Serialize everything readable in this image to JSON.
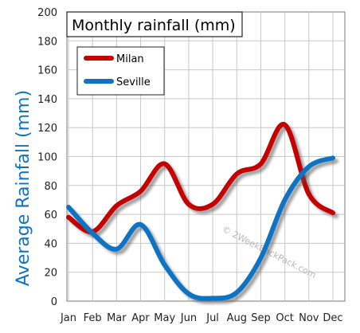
{
  "chart_data": {
    "type": "line",
    "title": "Monthly rainfall (mm)",
    "xlabel": "",
    "ylabel": "Average Rainfall (mm)",
    "categories": [
      "Jan",
      "Feb",
      "Mar",
      "Apr",
      "May",
      "Jun",
      "Jul",
      "Aug",
      "Sep",
      "Oct",
      "Nov",
      "Dec"
    ],
    "ylim": [
      0,
      200
    ],
    "yticks": [
      0,
      20,
      40,
      60,
      80,
      100,
      120,
      140,
      160,
      180,
      200
    ],
    "grid": true,
    "legend_position": "top-left",
    "series": [
      {
        "name": "Milan",
        "color": "#c40000",
        "values": [
          58,
          48,
          66,
          76,
          95,
          67,
          67,
          88,
          95,
          122,
          74,
          61
        ]
      },
      {
        "name": "Seville",
        "color": "#0f73c4",
        "values": [
          65,
          47,
          36,
          53,
          25,
          5,
          2,
          6,
          30,
          70,
          93,
          99
        ]
      }
    ],
    "watermark": "© 2WeekBackPack.com",
    "ylabel_color": "#0f73c4"
  }
}
